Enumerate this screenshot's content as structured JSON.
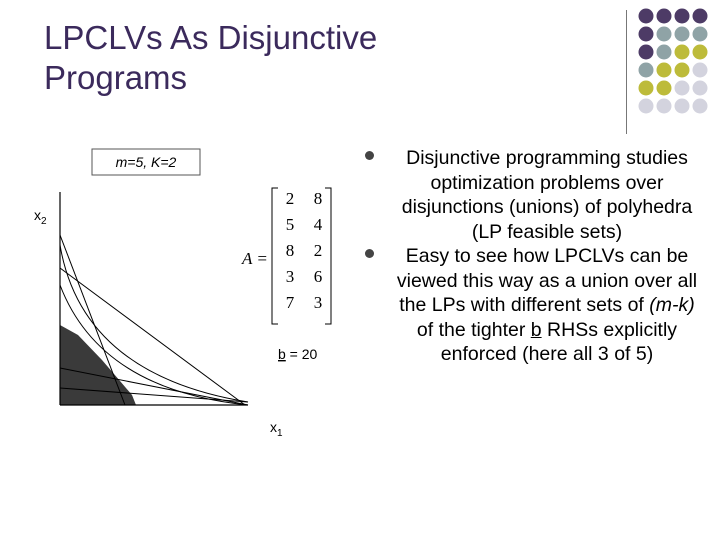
{
  "slide": {
    "title_line1": "LPCLVs As Disjunctive",
    "title_line2": "Programs"
  },
  "bullets": [
    {
      "text": "Disjunctive programming studies optimization problems over disjunctions (unions) of polyhedra (LP feasible sets)"
    },
    {
      "text_before": "Easy to see how LPCLVs can be viewed this way as a union over all the LPs with different sets of ",
      "text_italic": "(m-k)",
      "text_middle": " of the tighter ",
      "text_underline": "b",
      "text_after": " RHSs explicitly enforced (here all 3 of 5)"
    }
  ],
  "figure": {
    "params_label": "m=5, K=2",
    "y_axis_label": "x",
    "y_axis_sub": "2",
    "x_axis_label": "x",
    "x_axis_sub": "1",
    "matrix_label": "A =",
    "matrix": [
      [
        2,
        8
      ],
      [
        5,
        4
      ],
      [
        8,
        2
      ],
      [
        3,
        6
      ],
      [
        7,
        3
      ]
    ],
    "b_label": "b",
    "b_value": " = 20"
  },
  "colors": {
    "title": "#3b2a5c",
    "dot_purple": "#4d3b66",
    "dot_teal": "#8fa3a6",
    "dot_olive": "#bdbb3a",
    "dot_light": "#d3d3de"
  }
}
